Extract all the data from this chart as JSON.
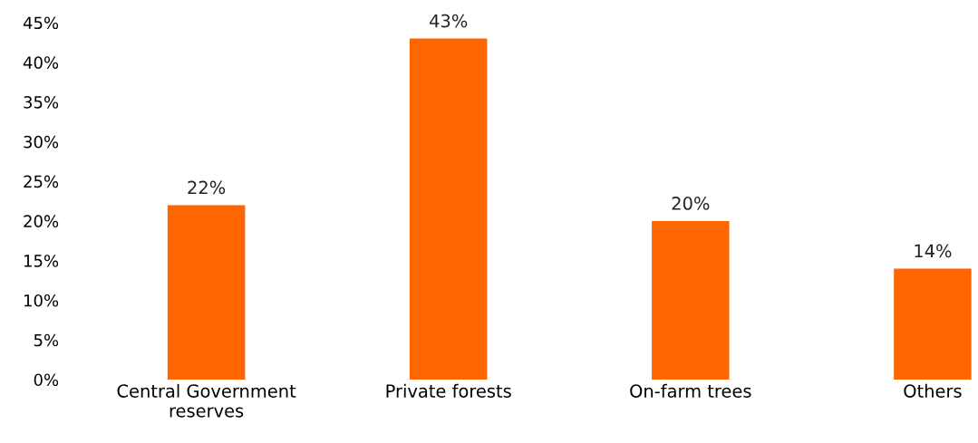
{
  "chart_data": {
    "type": "bar",
    "categories": [
      "Central Government\nreserves",
      "Private forests",
      "On-farm trees",
      "Others"
    ],
    "values": [
      22,
      43,
      20,
      14
    ],
    "color": "#ff6600",
    "value_labels": [
      "22%",
      "43%",
      "20%",
      "14%"
    ],
    "ylim": [
      0,
      45
    ],
    "yticks": [
      {
        "value": 0,
        "label": "0%"
      },
      {
        "value": 5,
        "label": "5%"
      },
      {
        "value": 10,
        "label": "10%"
      },
      {
        "value": 15,
        "label": "15%"
      },
      {
        "value": 20,
        "label": "20%"
      },
      {
        "value": 25,
        "label": "25%"
      },
      {
        "value": 30,
        "label": "30%"
      },
      {
        "value": 35,
        "label": "35%"
      },
      {
        "value": 40,
        "label": "40%"
      },
      {
        "value": 45,
        "label": "45%"
      }
    ],
    "grid": false,
    "legend": false
  }
}
